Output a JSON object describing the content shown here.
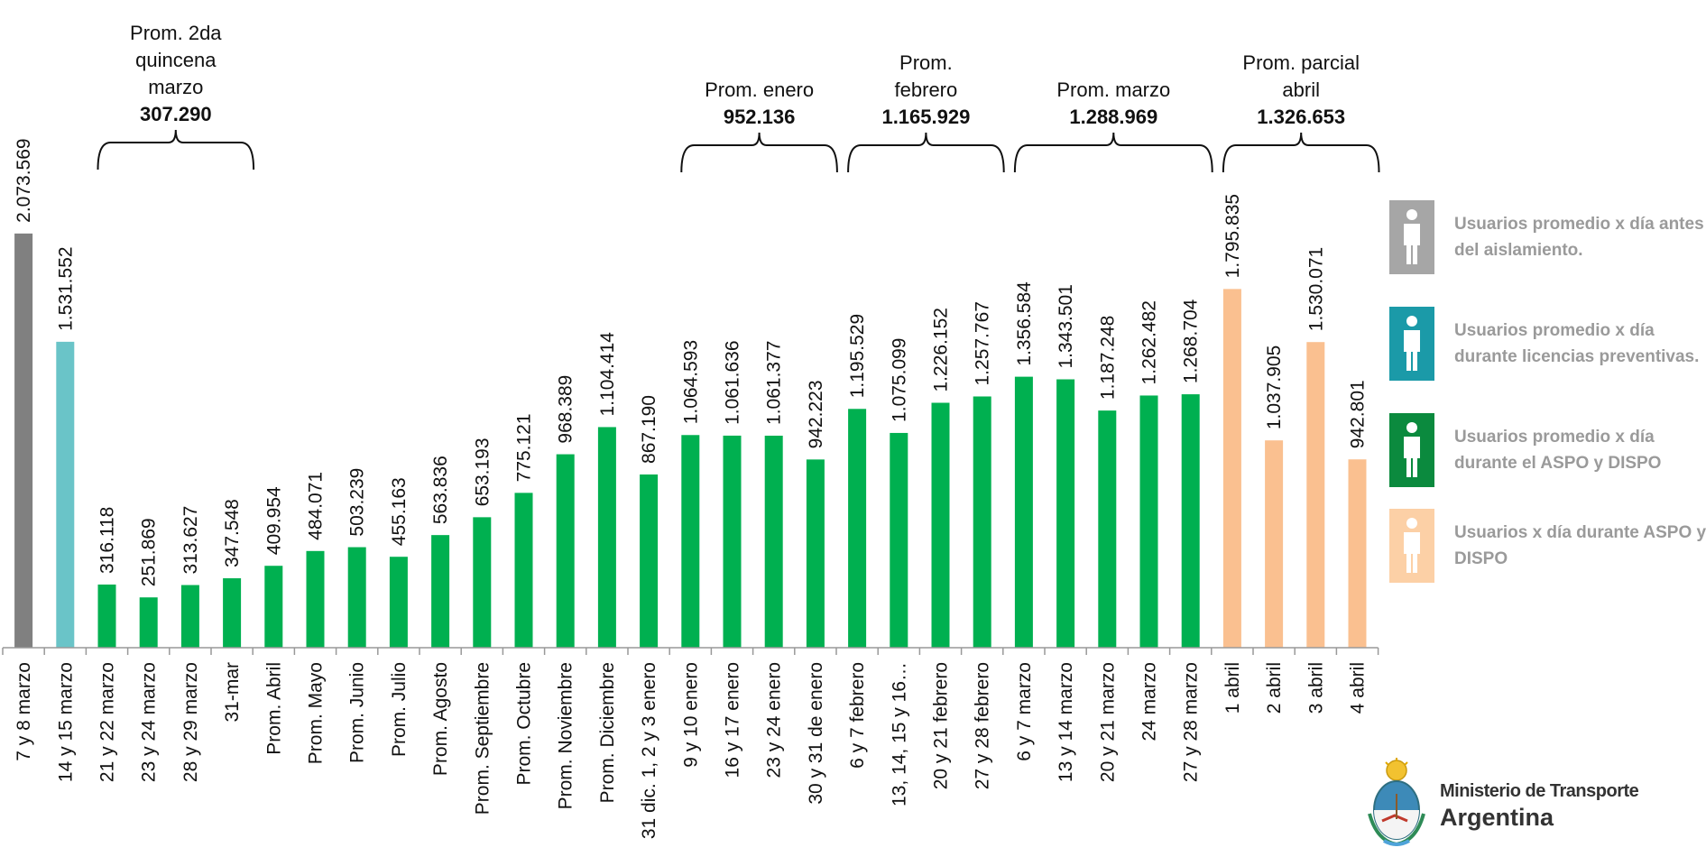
{
  "chart_data": {
    "type": "bar",
    "categories": [
      "7 y 8 marzo",
      "14 y 15 marzo",
      "21 y 22 marzo",
      "23 y 24 marzo",
      "28 y 29 marzo",
      "31-mar",
      "Prom. Abril",
      "Prom. Mayo",
      "Prom. Junio",
      "Prom. Julio",
      "Prom. Agosto",
      "Prom. Septiembre",
      "Prom. Octubre",
      "Prom. Noviembre",
      "Prom. Diciembre",
      "31 dic. 1, 2 y 3 enero",
      "9 y 10 enero",
      "16 y 17 enero",
      "23 y 24 enero",
      "30 y 31 de enero",
      "6 y 7 febrero",
      "13, 14, 15 y 16…",
      "20 y 21 febrero",
      "27 y 28 febrero",
      "6 y 7 marzo",
      "13 y 14 marzo",
      "20 y 21 marzo",
      "24 marzo",
      "27 y 28 marzo",
      "1 abril",
      "2 abril",
      "3 abril",
      "4 abril"
    ],
    "values": [
      2073569,
      1531552,
      316118,
      251869,
      313627,
      347548,
      409954,
      484071,
      503239,
      455163,
      563836,
      653193,
      775121,
      968389,
      1104414,
      867190,
      1064593,
      1061636,
      1061377,
      942223,
      1195529,
      1075099,
      1226152,
      1257767,
      1356584,
      1343501,
      1187248,
      1262482,
      1268704,
      1795835,
      1037905,
      1530071,
      942801
    ],
    "value_labels": [
      "2.073.569",
      "1.531.552",
      "316.118",
      "251.869",
      "313.627",
      "347.548",
      "409.954",
      "484.071",
      "503.239",
      "455.163",
      "563.836",
      "653.193",
      "775.121",
      "968.389",
      "1.104.414",
      "867.190",
      "1.064.593",
      "1.061.636",
      "1.061.377",
      "942.223",
      "1.195.529",
      "1.075.099",
      "1.226.152",
      "1.257.767",
      "1.356.584",
      "1.343.501",
      "1.187.248",
      "1.262.482",
      "1.268.704",
      "1.795.835",
      "1.037.905",
      "1.530.071",
      "942.801"
    ],
    "bar_groups": [
      0,
      1,
      2,
      2,
      2,
      2,
      2,
      2,
      2,
      2,
      2,
      2,
      2,
      2,
      2,
      2,
      2,
      2,
      2,
      2,
      2,
      2,
      2,
      2,
      2,
      2,
      2,
      2,
      2,
      3,
      3,
      3,
      3
    ],
    "colors": [
      "#808080",
      "#6ac4c8",
      "#00b050",
      "#fac090"
    ],
    "ylim": [
      0,
      2100000
    ],
    "brackets": [
      {
        "from": 2,
        "to": 5,
        "label_lines": [
          "Prom. 2da",
          "quincena",
          "marzo"
        ],
        "value": "307.290"
      },
      {
        "from": 16,
        "to": 19,
        "label_lines": [
          "Prom. enero"
        ],
        "value": "952.136"
      },
      {
        "from": 20,
        "to": 23,
        "label_lines": [
          "Prom.",
          "febrero"
        ],
        "value": "1.165.929"
      },
      {
        "from": 24,
        "to": 28,
        "label_lines": [
          "Prom. marzo"
        ],
        "value": "1.288.969"
      },
      {
        "from": 29,
        "to": 32,
        "label_lines": [
          "Prom. parcial",
          "abril"
        ],
        "value": "1.326.653"
      }
    ],
    "legend": [
      {
        "text": "Usuarios promedio x día antes del aislamiento.",
        "color": "#a6a6a6",
        "icon": "person-icon"
      },
      {
        "text": "Usuarios promedio x día durante licencias preventivas.",
        "color": "#1b9aa8",
        "icon": "person-icon"
      },
      {
        "text": "Usuarios promedio x día durante el ASPO y DISPO",
        "color": "#0b8a3e",
        "icon": "person-icon"
      },
      {
        "text": "Usuarios x día durante ASPO y DISPO",
        "color": "#fcd0a6",
        "icon": "person-icon"
      }
    ],
    "legend_placement": "right",
    "grid": false
  },
  "logo": {
    "line1": "Ministerio de Transporte",
    "line2": "Argentina",
    "icon": "argentina-coat-of-arms-icon"
  }
}
